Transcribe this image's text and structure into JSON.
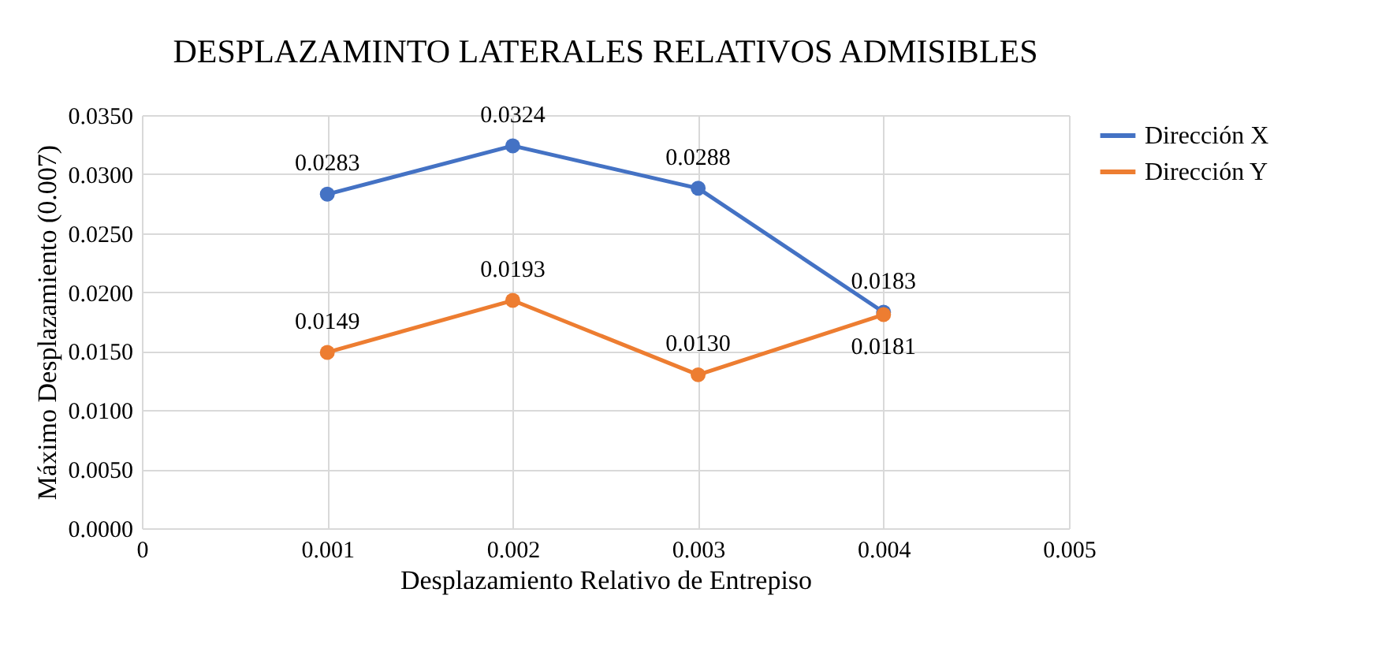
{
  "chart_data": {
    "type": "line",
    "title": "DESPLAZAMINTO LATERALES RELATIVOS ADMISIBLES",
    "xlabel": "Desplazamiento Relativo de Entrepiso",
    "ylabel": "Máximo Desplazamiento (0.007)",
    "x": [
      0.001,
      0.002,
      0.003,
      0.004
    ],
    "series": [
      {
        "name": "Dirección X",
        "color": "#4472c4",
        "values": [
          0.0283,
          0.0324,
          0.0288,
          0.0183
        ],
        "value_labels": [
          "0.0283",
          "0.0324",
          "0.0288",
          "0.0183"
        ]
      },
      {
        "name": "Dirección Y",
        "color": "#ed7d31",
        "values": [
          0.0149,
          0.0193,
          0.013,
          0.0181
        ],
        "value_labels": [
          "0.0149",
          "0.0193",
          "0.0130",
          "0.0181"
        ]
      }
    ],
    "xlim": [
      0,
      0.005
    ],
    "xticks": [
      0,
      0.001,
      0.002,
      0.003,
      0.004,
      0.005
    ],
    "ylim": [
      0,
      0.035
    ],
    "yticks": [
      {
        "value": 0,
        "label": "0.0000"
      },
      {
        "value": 0.005,
        "label": "0.0050"
      },
      {
        "value": 0.01,
        "label": "0.0100"
      },
      {
        "value": 0.015,
        "label": "0.0150"
      },
      {
        "value": 0.02,
        "label": "0.0200"
      },
      {
        "value": 0.025,
        "label": "0.0250"
      },
      {
        "value": 0.03,
        "label": "0.0300"
      },
      {
        "value": 0.035,
        "label": "0.0350"
      }
    ],
    "grid": true,
    "legend": "right",
    "marker": "circle",
    "line_style": "solid"
  }
}
